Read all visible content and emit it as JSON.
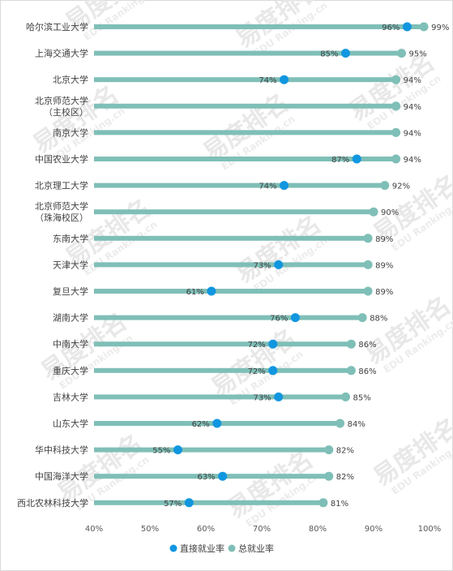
{
  "chart_data": {
    "type": "dot-range",
    "categories": [
      "哈尔滨工业大学",
      "上海交通大学",
      "北京大学",
      "北京师范大学\n（主校区）",
      "南京大学",
      "中国农业大学",
      "北京理工大学",
      "北京师范大学\n（珠海校区）",
      "东南大学",
      "天津大学",
      "复旦大学",
      "湖南大学",
      "中南大学",
      "重庆大学",
      "吉林大学",
      "山东大学",
      "华中科技大学",
      "中国海洋大学",
      "西北农林科技大学"
    ],
    "series": [
      {
        "name": "直接就业率",
        "color": "#1196e0",
        "values": [
          96,
          85,
          74,
          null,
          null,
          87,
          74,
          null,
          null,
          73,
          61,
          76,
          72,
          72,
          73,
          62,
          55,
          63,
          57
        ]
      },
      {
        "name": "总就业率",
        "color": "#7fbfb7",
        "values": [
          99,
          95,
          94,
          94,
          94,
          94,
          92,
          90,
          89,
          89,
          89,
          88,
          86,
          86,
          85,
          84,
          82,
          82,
          81
        ]
      }
    ],
    "x_ticks": [
      "40%",
      "50%",
      "60%",
      "70%",
      "80%",
      "90%",
      "100%"
    ],
    "xlim": [
      40,
      100
    ],
    "grid": false,
    "legend_position": "bottom",
    "watermark": {
      "text": "易度排名",
      "sub": "EDU Ranking.cn"
    }
  }
}
